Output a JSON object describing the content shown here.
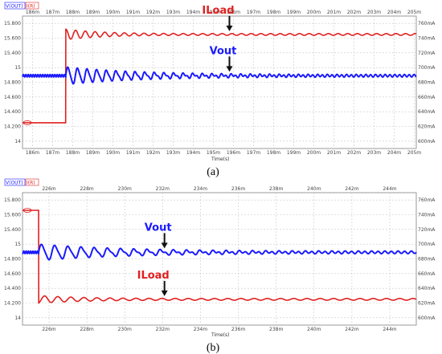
{
  "chart_data": [
    {
      "type": "line",
      "caption": "(a)",
      "legend": [
        {
          "text": "V(OUT)",
          "color": "#1a1aff"
        },
        {
          "text": "I(R)",
          "color": "#e02020"
        }
      ],
      "xlabel": "Time(s)",
      "x_ticks": [
        "186m",
        "187m",
        "188m",
        "189m",
        "190m",
        "191m",
        "192m",
        "193m",
        "194m",
        "195m",
        "196m",
        "197m",
        "198m",
        "199m",
        "200m",
        "201m",
        "202m",
        "203m",
        "204m",
        "205m"
      ],
      "x_tick_values": [
        186,
        187,
        188,
        189,
        190,
        191,
        192,
        193,
        194,
        195,
        196,
        197,
        198,
        199,
        200,
        201,
        202,
        203,
        204,
        205
      ],
      "xlim": [
        185.5,
        205.1
      ],
      "x_unit": "ms",
      "y_left_ticks": [
        "15.800",
        "15.600",
        "15.400",
        "15",
        "14.800",
        "14.600",
        "14.400",
        "14.200",
        "14"
      ],
      "y_right_ticks": [
        "760mA",
        "740mA",
        "720mA",
        "700mA",
        "680mA",
        "660mA",
        "640mA",
        "620mA",
        "600mA"
      ],
      "series": [
        {
          "name": "ILoad",
          "axis": "right",
          "color": "#e02020",
          "step_at": 187.65,
          "before": 625,
          "after": 745,
          "overshoot": 7,
          "decay_ms": 2.2,
          "period_ms": 0.48
        },
        {
          "name": "Vout",
          "axis": "left",
          "color": "#1a1aff",
          "step_at": 187.65,
          "level": 15.0,
          "amplitude": 0.13,
          "decay_ms": 4.0,
          "period_ms": 0.48,
          "ripple": 0.018
        }
      ],
      "annotations": [
        {
          "label": "ILoad",
          "color": "#e02020",
          "at_x": 195.8
        },
        {
          "label": "Vout",
          "color": "#1a1aff",
          "at_x": 195.8
        }
      ]
    },
    {
      "type": "line",
      "caption": "(b)",
      "legend": [
        {
          "text": "V(OUT)",
          "color": "#1a1aff"
        },
        {
          "text": "I(R)",
          "color": "#e02020"
        }
      ],
      "xlabel": "Time(s)",
      "x_ticks": [
        "226m",
        "228m",
        "230m",
        "232m",
        "234m",
        "236m",
        "238m",
        "240m",
        "242m",
        "244m"
      ],
      "x_tick_values": [
        226,
        228,
        230,
        232,
        234,
        236,
        238,
        240,
        242,
        244
      ],
      "xlim": [
        224.6,
        245.4
      ],
      "x_unit": "ms",
      "y_left_ticks": [
        "15.800",
        "15.600",
        "15.400",
        "15",
        "14.800",
        "14.600",
        "14.400",
        "14.200",
        "14"
      ],
      "y_right_ticks": [
        "760mA",
        "740mA",
        "720mA",
        "700mA",
        "680mA",
        "660mA",
        "640mA",
        "620mA",
        "600mA"
      ],
      "series": [
        {
          "name": "ILoad",
          "axis": "right",
          "color": "#e02020",
          "step_at": 225.45,
          "before": 746,
          "after": 625,
          "overshoot": -5,
          "decay_ms": 3.0,
          "period_ms": 0.7
        },
        {
          "name": "Vout",
          "axis": "left",
          "color": "#1a1aff",
          "step_at": 225.45,
          "level": 15.0,
          "amplitude": 0.12,
          "decay_ms": 5.0,
          "period_ms": 0.7,
          "ripple": 0.018
        }
      ],
      "annotations": [
        {
          "label": "Vout",
          "color": "#1a1aff",
          "at_x": 232.1
        },
        {
          "label": "ILoad",
          "color": "#e02020",
          "at_x": 232.1
        }
      ]
    }
  ]
}
